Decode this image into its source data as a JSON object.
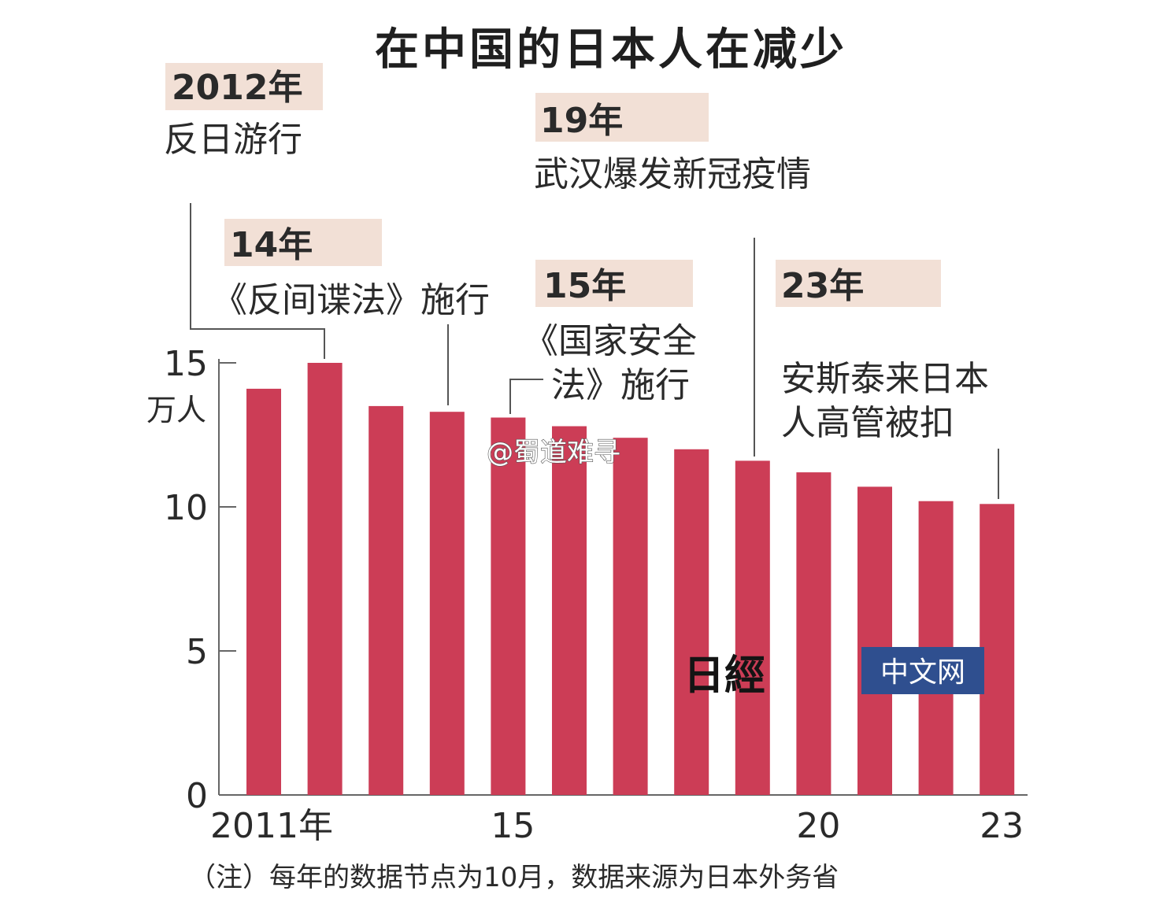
{
  "chart_data": {
    "type": "bar",
    "title": "在中国的日本人在减少",
    "ylabel": "万人",
    "ylim": [
      0,
      15
    ],
    "yticks": [
      0,
      5,
      10,
      15
    ],
    "categories": [
      "2011",
      "2012",
      "2013",
      "2014",
      "2015",
      "2016",
      "2017",
      "2018",
      "2019",
      "2020",
      "2021",
      "2022",
      "2023"
    ],
    "xtick_labels": [
      {
        "index": 0,
        "label": "2011年"
      },
      {
        "index": 4,
        "label": "15"
      },
      {
        "index": 9,
        "label": "20"
      },
      {
        "index": 12,
        "label": "23"
      }
    ],
    "values": [
      14.1,
      15.0,
      13.5,
      13.3,
      13.1,
      12.8,
      12.4,
      12.0,
      11.6,
      11.2,
      10.7,
      10.2,
      10.1
    ],
    "color": "#cc3d56",
    "annotations": [
      {
        "year": "2012年",
        "text": [
          "反日游行"
        ]
      },
      {
        "year": "14年",
        "text": [
          "《反间谍法》施行"
        ]
      },
      {
        "year": "15年",
        "text": [
          "《国家安全",
          "法》施行"
        ]
      },
      {
        "year": "19年",
        "text": [
          "武汉爆发新冠疫情"
        ]
      },
      {
        "year": "23年",
        "text": [
          "安斯泰来日本",
          "人高管被扣"
        ]
      }
    ],
    "note": "（注）每年的数据节点为10月，数据来源为日本外务省"
  },
  "watermark": {
    "logo": "日經",
    "label": "中文网",
    "weibo": "@蜀道难寻"
  }
}
